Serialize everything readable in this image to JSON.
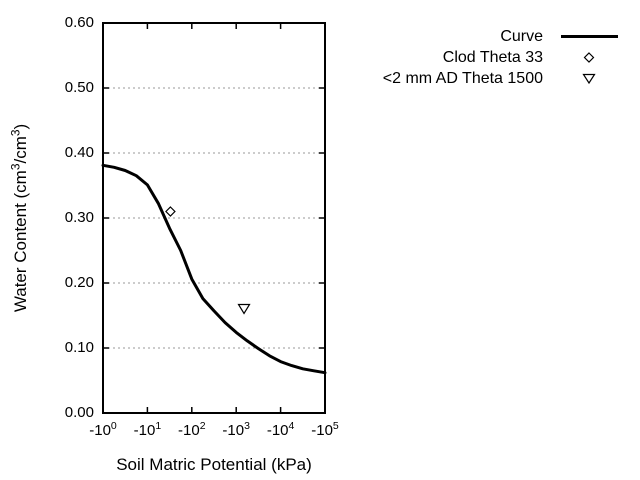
{
  "chart_data": {
    "type": "line",
    "title": "",
    "xlabel": "Soil Matric Potential (kPa)",
    "ylabel": "Water Content (cm3/cm3)",
    "ylabel_parts": [
      {
        "t": "Water Content (cm"
      },
      {
        "sup": "3"
      },
      {
        "t": "/cm"
      },
      {
        "sup": "3"
      },
      {
        "t": ")"
      }
    ],
    "x_scale": "log10 of negative kPa",
    "xlim_log10": [
      0,
      5
    ],
    "ylim": [
      0.0,
      0.6
    ],
    "x_ticks": [
      {
        "text": "-10",
        "sup": "0"
      },
      {
        "text": "-10",
        "sup": "1"
      },
      {
        "text": "-10",
        "sup": "2"
      },
      {
        "text": "-10",
        "sup": "3"
      },
      {
        "text": "-10",
        "sup": "4"
      },
      {
        "text": "-10",
        "sup": "5"
      }
    ],
    "y_ticks": [
      "0.00",
      "0.10",
      "0.20",
      "0.30",
      "0.40",
      "0.50",
      "0.60"
    ],
    "grid": "horizontal dotted lines at each 0.10",
    "legend": {
      "position": "outside-top-right",
      "items": [
        {
          "label": "Curve",
          "marker": "line"
        },
        {
          "label": "Clod Theta 33",
          "marker": "diamond-open"
        },
        {
          "label": "<2 mm AD Theta 1500",
          "marker": "triangle-down-open"
        }
      ]
    },
    "series": [
      {
        "name": "Curve",
        "type": "line",
        "points_log10kpa_theta": [
          [
            0.0,
            0.381
          ],
          [
            0.25,
            0.378
          ],
          [
            0.5,
            0.373
          ],
          [
            0.75,
            0.365
          ],
          [
            1.0,
            0.351
          ],
          [
            1.25,
            0.322
          ],
          [
            1.5,
            0.284
          ],
          [
            1.75,
            0.25
          ],
          [
            2.0,
            0.206
          ],
          [
            2.25,
            0.176
          ],
          [
            2.5,
            0.157
          ],
          [
            2.75,
            0.139
          ],
          [
            3.0,
            0.124
          ],
          [
            3.25,
            0.111
          ],
          [
            3.5,
            0.099
          ],
          [
            3.75,
            0.088
          ],
          [
            4.0,
            0.079
          ],
          [
            4.25,
            0.073
          ],
          [
            4.5,
            0.068
          ],
          [
            4.75,
            0.065
          ],
          [
            5.0,
            0.062
          ]
        ]
      },
      {
        "name": "Clod Theta 33",
        "type": "scatter",
        "marker": "diamond-open",
        "points_kpa_theta": [
          [
            -33,
            0.31
          ]
        ]
      },
      {
        "name": "<2 mm AD Theta 1500",
        "type": "scatter",
        "marker": "triangle-down-open",
        "points_kpa_theta": [
          [
            -1500,
            0.16
          ]
        ]
      }
    ],
    "colors": {
      "line": "#000000",
      "text": "#000000",
      "grid": "#999999",
      "background": "#ffffff"
    }
  }
}
